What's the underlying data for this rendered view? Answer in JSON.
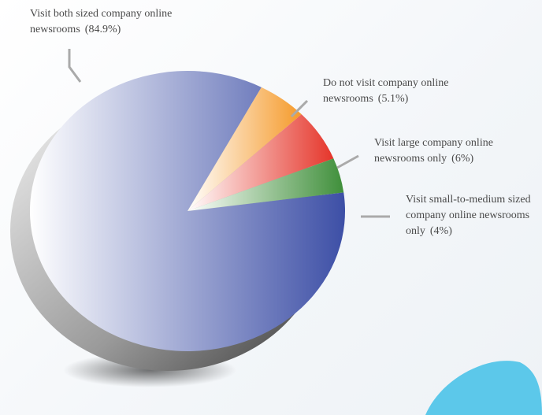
{
  "chart_data": {
    "type": "pie",
    "categories": [
      "Visit both sized company online newsrooms",
      "Do not visit company online newsrooms",
      "Visit large company online newsrooms only",
      "Visit small-to-medium sized company online newsrooms only"
    ],
    "values": [
      84.9,
      5.1,
      6,
      4
    ],
    "value_labels": [
      "(84.9%)",
      "(5.1%)",
      "(6%)",
      "(4%)"
    ],
    "colors": [
      "#3d4fa6",
      "#f59a2a",
      "#e5352a",
      "#3f8f3a"
    ]
  }
}
